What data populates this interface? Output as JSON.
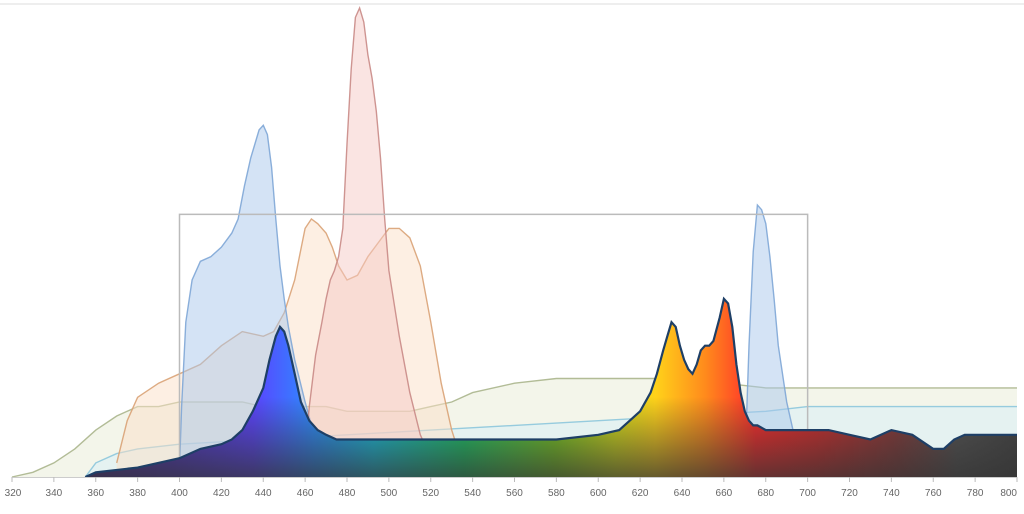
{
  "chart_data": {
    "type": "area",
    "title": "",
    "xlabel": "",
    "ylabel": "",
    "xlim": [
      320,
      800
    ],
    "ylim": [
      0,
      1
    ],
    "x_ticks": [
      320,
      340,
      360,
      380,
      400,
      420,
      440,
      460,
      480,
      500,
      520,
      540,
      560,
      580,
      600,
      620,
      640,
      660,
      680,
      700,
      720,
      740,
      760,
      780,
      800
    ],
    "x_tick_labels": [
      "320",
      "340",
      "360",
      "380",
      "400",
      "420",
      "440",
      "460",
      "480",
      "500",
      "520",
      "540",
      "560",
      "580",
      "600",
      "620",
      "640",
      "660",
      "680",
      "700",
      "720",
      "740",
      "760",
      "780",
      "800"
    ],
    "grid": false,
    "legend": "none",
    "colors": {
      "blue": "#a9c8ec",
      "blue_stroke": "#7ea6d6",
      "pink": "#f6c9c6",
      "pink_stroke": "#c98a86",
      "orange": "#fbe0c8",
      "orange_stroke": "#d9a276",
      "olive": "#e9ecd9",
      "olive_stroke": "#aab58c",
      "cyan": "#d8eef6",
      "cyan_stroke": "#8cc6dc",
      "box_stroke": "#bbbbbb",
      "main_stroke": "#1e3f66",
      "base_fill": "#555555"
    },
    "reference_box": {
      "x0": 400,
      "x1": 700,
      "y0": 0,
      "y1": 0.56
    },
    "series": [
      {
        "id": "blue",
        "x": [
          400,
          401,
          403,
          406,
          410,
          415,
          420,
          425,
          428,
          431,
          434,
          436,
          438,
          440,
          442,
          444,
          446,
          448,
          450,
          452,
          455,
          460,
          465,
          470,
          475,
          480,
          670,
          672,
          674,
          676,
          678,
          680,
          682,
          684,
          686,
          690,
          695,
          700
        ],
        "y": [
          0.02,
          0.15,
          0.33,
          0.42,
          0.46,
          0.47,
          0.49,
          0.52,
          0.55,
          0.62,
          0.68,
          0.71,
          0.74,
          0.75,
          0.73,
          0.66,
          0.55,
          0.45,
          0.38,
          0.32,
          0.25,
          0.16,
          0.08,
          0.04,
          0.02,
          0.01,
          0.02,
          0.28,
          0.48,
          0.58,
          0.57,
          0.54,
          0.47,
          0.38,
          0.28,
          0.16,
          0.06,
          0.02
        ]
      },
      {
        "id": "pink",
        "x": [
          460,
          462,
          465,
          468,
          470,
          472,
          474,
          476,
          478,
          480,
          482,
          484,
          486,
          488,
          490,
          492,
          494,
          496,
          498,
          500,
          505,
          510,
          515,
          520,
          525,
          530
        ],
        "y": [
          0.05,
          0.15,
          0.26,
          0.33,
          0.38,
          0.42,
          0.44,
          0.47,
          0.53,
          0.71,
          0.87,
          0.98,
          1.0,
          0.97,
          0.9,
          0.85,
          0.78,
          0.68,
          0.55,
          0.44,
          0.3,
          0.18,
          0.09,
          0.04,
          0.02,
          0.01
        ]
      },
      {
        "id": "orange",
        "x": [
          370,
          375,
          380,
          390,
          400,
          410,
          420,
          430,
          440,
          445,
          450,
          455,
          460,
          463,
          466,
          470,
          473,
          476,
          480,
          485,
          490,
          495,
          500,
          505,
          510,
          515,
          520,
          525,
          530,
          535
        ],
        "y": [
          0.03,
          0.12,
          0.17,
          0.2,
          0.22,
          0.24,
          0.28,
          0.31,
          0.3,
          0.31,
          0.35,
          0.42,
          0.53,
          0.55,
          0.54,
          0.52,
          0.49,
          0.45,
          0.42,
          0.43,
          0.47,
          0.5,
          0.53,
          0.53,
          0.51,
          0.45,
          0.33,
          0.2,
          0.1,
          0.03
        ]
      },
      {
        "id": "olive",
        "x": [
          320,
          330,
          340,
          350,
          360,
          370,
          380,
          390,
          400,
          410,
          420,
          430,
          440,
          450,
          460,
          470,
          480,
          490,
          500,
          510,
          520,
          530,
          540,
          560,
          580,
          600,
          620,
          640,
          660,
          680,
          700,
          720,
          740,
          760,
          780,
          800
        ],
        "y": [
          0.0,
          0.01,
          0.03,
          0.06,
          0.1,
          0.13,
          0.15,
          0.15,
          0.16,
          0.16,
          0.16,
          0.16,
          0.15,
          0.15,
          0.15,
          0.15,
          0.14,
          0.14,
          0.14,
          0.14,
          0.15,
          0.16,
          0.18,
          0.2,
          0.21,
          0.21,
          0.21,
          0.21,
          0.2,
          0.19,
          0.19,
          0.19,
          0.19,
          0.19,
          0.19,
          0.19
        ]
      },
      {
        "id": "cyan",
        "x": [
          355,
          360,
          370,
          380,
          400,
          440,
          480,
          520,
          560,
          600,
          640,
          680,
          700,
          720,
          740,
          760,
          780,
          800
        ],
        "y": [
          0.0,
          0.03,
          0.05,
          0.06,
          0.07,
          0.08,
          0.09,
          0.1,
          0.11,
          0.12,
          0.13,
          0.14,
          0.15,
          0.15,
          0.15,
          0.15,
          0.15,
          0.15
        ]
      },
      {
        "id": "spectrum",
        "x": [
          355,
          360,
          380,
          400,
          410,
          420,
          425,
          430,
          435,
          440,
          443,
          446,
          448,
          450,
          452,
          455,
          458,
          462,
          466,
          470,
          475,
          480,
          490,
          500,
          520,
          540,
          560,
          580,
          600,
          610,
          615,
          620,
          625,
          628,
          631,
          633,
          635,
          637,
          639,
          641,
          643,
          645,
          647,
          649,
          651,
          653,
          655,
          658,
          660,
          662,
          664,
          666,
          668,
          670,
          672,
          674,
          676,
          680,
          690,
          700,
          710,
          720,
          730,
          740,
          750,
          760,
          765,
          770,
          775,
          780,
          790,
          800
        ],
        "y": [
          0.0,
          0.01,
          0.02,
          0.04,
          0.06,
          0.07,
          0.08,
          0.1,
          0.14,
          0.19,
          0.25,
          0.3,
          0.32,
          0.31,
          0.28,
          0.22,
          0.16,
          0.12,
          0.1,
          0.09,
          0.08,
          0.08,
          0.08,
          0.08,
          0.08,
          0.08,
          0.08,
          0.08,
          0.09,
          0.1,
          0.12,
          0.14,
          0.18,
          0.22,
          0.27,
          0.3,
          0.33,
          0.32,
          0.28,
          0.25,
          0.23,
          0.22,
          0.24,
          0.27,
          0.28,
          0.28,
          0.29,
          0.34,
          0.38,
          0.37,
          0.32,
          0.24,
          0.18,
          0.14,
          0.12,
          0.11,
          0.11,
          0.1,
          0.1,
          0.1,
          0.1,
          0.09,
          0.08,
          0.1,
          0.09,
          0.06,
          0.06,
          0.08,
          0.09,
          0.09,
          0.09,
          0.09
        ]
      }
    ]
  }
}
